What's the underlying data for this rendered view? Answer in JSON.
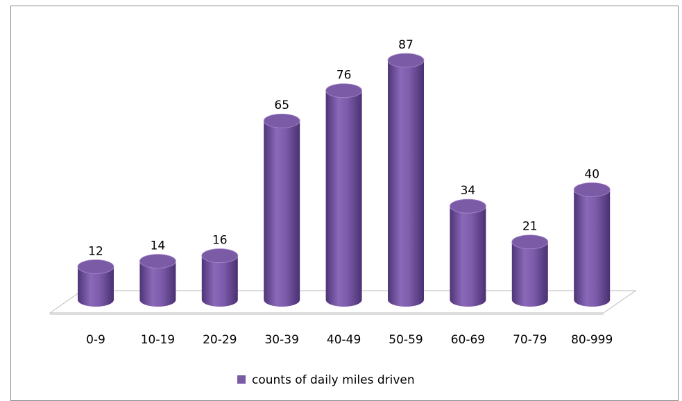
{
  "chart_data": {
    "type": "bar",
    "categories": [
      "0-9",
      "10-19",
      "20-29",
      "30-39",
      "40-49",
      "50-59",
      "60-69",
      "70-79",
      "80-999"
    ],
    "series": [
      {
        "name": "counts of daily miles driven",
        "color": "#7b5aa6",
        "values": [
          12,
          14,
          16,
          65,
          76,
          87,
          34,
          21,
          40
        ]
      }
    ],
    "legend": "bottom"
  }
}
